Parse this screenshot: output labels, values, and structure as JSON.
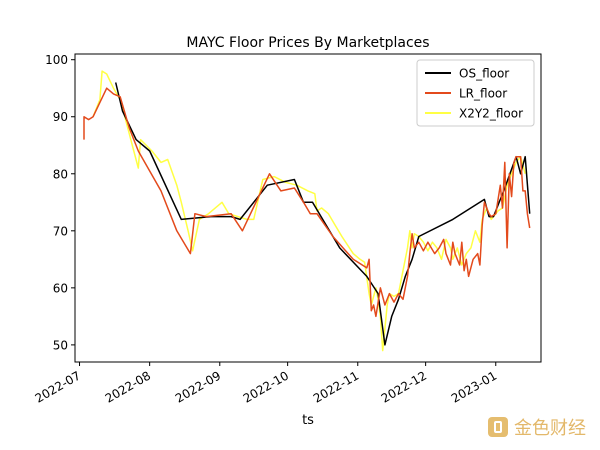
{
  "chart_data": {
    "type": "line",
    "title": "MAYC Floor Prices By Marketplaces",
    "xlabel": "ts",
    "ylabel": "",
    "ylim": [
      47,
      101
    ],
    "yticks": [
      50,
      60,
      70,
      80,
      90,
      100
    ],
    "xlim": [
      "2022-06-29",
      "2023-01-21"
    ],
    "xticks": [
      {
        "date": "2022-07-01",
        "label": "2022-07"
      },
      {
        "date": "2022-08-01",
        "label": "2022-08"
      },
      {
        "date": "2022-09-01",
        "label": "2022-09"
      },
      {
        "date": "2022-10-01",
        "label": "2022-10"
      },
      {
        "date": "2022-11-01",
        "label": "2022-11"
      },
      {
        "date": "2022-12-01",
        "label": "2022-12"
      },
      {
        "date": "2023-01-01",
        "label": "2023-01"
      }
    ],
    "legend_position": "top-right",
    "series": [
      {
        "name": "OS_floor",
        "color": "#000000",
        "points": [
          [
            "2022-07-17",
            96
          ],
          [
            "2022-07-20",
            91
          ],
          [
            "2022-07-26",
            86
          ],
          [
            "2022-08-01",
            84
          ],
          [
            "2022-08-15",
            72
          ],
          [
            "2022-08-28",
            72.5
          ],
          [
            "2022-09-06",
            72.5
          ],
          [
            "2022-09-10",
            72
          ],
          [
            "2022-09-22",
            78
          ],
          [
            "2022-10-04",
            79
          ],
          [
            "2022-10-08",
            75
          ],
          [
            "2022-10-12",
            75
          ],
          [
            "2022-10-24",
            67
          ],
          [
            "2022-11-05",
            62
          ],
          [
            "2022-11-10",
            59
          ],
          [
            "2022-11-13",
            50
          ],
          [
            "2022-11-16",
            55
          ],
          [
            "2022-11-19",
            58
          ],
          [
            "2022-11-22",
            62
          ],
          [
            "2022-11-25",
            65
          ],
          [
            "2022-11-28",
            69
          ],
          [
            "2022-12-13",
            72
          ],
          [
            "2022-12-27",
            75.5
          ],
          [
            "2022-12-29",
            72.5
          ],
          [
            "2022-12-31",
            72.5
          ],
          [
            "2023-01-05",
            77.5
          ],
          [
            "2023-01-10",
            83
          ],
          [
            "2023-01-12",
            80
          ],
          [
            "2023-01-14",
            83
          ],
          [
            "2023-01-16",
            73
          ]
        ]
      },
      {
        "name": "LR_floor",
        "color": "#e34a1c",
        "points": [
          [
            "2022-07-03",
            86
          ],
          [
            "2022-07-03",
            90
          ],
          [
            "2022-07-05",
            89.5
          ],
          [
            "2022-07-07",
            90
          ],
          [
            "2022-07-13",
            95
          ],
          [
            "2022-07-16",
            94
          ],
          [
            "2022-07-19",
            93.5
          ],
          [
            "2022-07-23",
            88
          ],
          [
            "2022-07-27",
            84
          ],
          [
            "2022-08-06",
            77
          ],
          [
            "2022-08-13",
            70
          ],
          [
            "2022-08-19",
            66
          ],
          [
            "2022-08-21",
            73
          ],
          [
            "2022-08-26",
            72.5
          ],
          [
            "2022-09-06",
            73
          ],
          [
            "2022-09-11",
            70
          ],
          [
            "2022-09-23",
            80
          ],
          [
            "2022-09-28",
            77
          ],
          [
            "2022-10-04",
            77.5
          ],
          [
            "2022-10-08",
            75
          ],
          [
            "2022-10-11",
            73
          ],
          [
            "2022-10-14",
            73
          ],
          [
            "2022-10-21",
            69
          ],
          [
            "2022-10-30",
            65
          ],
          [
            "2022-11-05",
            63.5
          ],
          [
            "2022-11-06",
            65
          ],
          [
            "2022-11-07",
            56
          ],
          [
            "2022-11-08",
            57
          ],
          [
            "2022-11-09",
            55
          ],
          [
            "2022-11-11",
            60
          ],
          [
            "2022-11-13",
            57
          ],
          [
            "2022-11-15",
            59
          ],
          [
            "2022-11-17",
            57.5
          ],
          [
            "2022-11-19",
            59
          ],
          [
            "2022-11-21",
            58
          ],
          [
            "2022-11-23",
            62
          ],
          [
            "2022-11-24",
            66
          ],
          [
            "2022-11-25",
            69.5
          ],
          [
            "2022-11-26",
            67
          ],
          [
            "2022-11-28",
            68
          ],
          [
            "2022-11-30",
            66.5
          ],
          [
            "2022-12-02",
            68
          ],
          [
            "2022-12-05",
            66
          ],
          [
            "2022-12-07",
            67
          ],
          [
            "2022-12-09",
            68.5
          ],
          [
            "2022-12-10",
            66
          ],
          [
            "2022-12-12",
            64
          ],
          [
            "2022-12-13",
            68
          ],
          [
            "2022-12-14",
            66
          ],
          [
            "2022-12-16",
            64
          ],
          [
            "2022-12-17",
            68
          ],
          [
            "2022-12-18",
            63
          ],
          [
            "2022-12-19",
            65
          ],
          [
            "2022-12-20",
            62
          ],
          [
            "2022-12-22",
            65
          ],
          [
            "2022-12-24",
            66
          ],
          [
            "2022-12-25",
            64
          ],
          [
            "2022-12-26",
            71
          ],
          [
            "2022-12-27",
            75
          ],
          [
            "2022-12-29",
            73
          ],
          [
            "2022-12-30",
            72.5
          ],
          [
            "2023-01-01",
            73
          ],
          [
            "2023-01-03",
            78
          ],
          [
            "2023-01-04",
            74
          ],
          [
            "2023-01-05",
            82
          ],
          [
            "2023-01-06",
            67
          ],
          [
            "2023-01-07",
            80
          ],
          [
            "2023-01-08",
            76
          ],
          [
            "2023-01-09",
            82
          ],
          [
            "2023-01-10",
            83
          ],
          [
            "2023-01-12",
            83
          ],
          [
            "2023-01-13",
            77
          ],
          [
            "2023-01-14",
            77
          ],
          [
            "2023-01-15",
            73
          ],
          [
            "2023-01-16",
            70.5
          ]
        ]
      },
      {
        "name": "X2Y2_floor",
        "color": "#ffff44",
        "points": [
          [
            "2022-07-07",
            90
          ],
          [
            "2022-07-10",
            93
          ],
          [
            "2022-07-11",
            98
          ],
          [
            "2022-07-13",
            97.5
          ],
          [
            "2022-07-16",
            95
          ],
          [
            "2022-07-19",
            93
          ],
          [
            "2022-07-21",
            90
          ],
          [
            "2022-07-25",
            84
          ],
          [
            "2022-07-27",
            81
          ],
          [
            "2022-07-28",
            86
          ],
          [
            "2022-08-02",
            84
          ],
          [
            "2022-08-06",
            82
          ],
          [
            "2022-08-09",
            82.5
          ],
          [
            "2022-08-13",
            78
          ],
          [
            "2022-08-15",
            75
          ],
          [
            "2022-08-18",
            70
          ],
          [
            "2022-08-20",
            66.5
          ],
          [
            "2022-08-23",
            72
          ],
          [
            "2022-08-27",
            73
          ],
          [
            "2022-09-02",
            75
          ],
          [
            "2022-09-05",
            73
          ],
          [
            "2022-09-09",
            72.5
          ],
          [
            "2022-09-13",
            72
          ],
          [
            "2022-09-16",
            72
          ],
          [
            "2022-09-20",
            79
          ],
          [
            "2022-09-25",
            79.5
          ],
          [
            "2022-09-30",
            78.5
          ],
          [
            "2022-10-05",
            78
          ],
          [
            "2022-10-10",
            77
          ],
          [
            "2022-10-13",
            76.5
          ],
          [
            "2022-10-14",
            73.5
          ],
          [
            "2022-10-16",
            74
          ],
          [
            "2022-10-19",
            73
          ],
          [
            "2022-10-22",
            71
          ],
          [
            "2022-10-25",
            69
          ],
          [
            "2022-10-30",
            66
          ],
          [
            "2022-11-02",
            65
          ],
          [
            "2022-11-04",
            64.5
          ],
          [
            "2022-11-06",
            59
          ],
          [
            "2022-11-07",
            57
          ],
          [
            "2022-11-09",
            60
          ],
          [
            "2022-11-10",
            58
          ],
          [
            "2022-11-11",
            55
          ],
          [
            "2022-11-12",
            49
          ],
          [
            "2022-11-14",
            57
          ],
          [
            "2022-11-15",
            59
          ],
          [
            "2022-11-17",
            58.5
          ],
          [
            "2022-11-19",
            59
          ],
          [
            "2022-11-21",
            63
          ],
          [
            "2022-11-23",
            67
          ],
          [
            "2022-11-24",
            70
          ],
          [
            "2022-11-25",
            67
          ],
          [
            "2022-11-26",
            69.5
          ],
          [
            "2022-11-28",
            69
          ],
          [
            "2022-11-30",
            68
          ],
          [
            "2022-12-02",
            66.5
          ],
          [
            "2022-12-04",
            68
          ],
          [
            "2022-12-06",
            67
          ],
          [
            "2022-12-08",
            65
          ],
          [
            "2022-12-10",
            68.5
          ],
          [
            "2022-12-12",
            67
          ],
          [
            "2022-12-13",
            65
          ],
          [
            "2022-12-15",
            67
          ],
          [
            "2022-12-17",
            64
          ],
          [
            "2022-12-19",
            66
          ],
          [
            "2022-12-21",
            67
          ],
          [
            "2022-12-23",
            70
          ],
          [
            "2022-12-25",
            68
          ],
          [
            "2022-12-26",
            72
          ],
          [
            "2022-12-28",
            74
          ],
          [
            "2022-12-30",
            72
          ],
          [
            "2023-01-02",
            73.5
          ],
          [
            "2023-01-04",
            74
          ],
          [
            "2023-01-06",
            78
          ],
          [
            "2023-01-08",
            80
          ],
          [
            "2023-01-10",
            82
          ],
          [
            "2023-01-12",
            83
          ],
          [
            "2023-01-14",
            80
          ]
        ]
      }
    ]
  },
  "watermark": {
    "text": "金色财经",
    "color": "#e0b15a"
  }
}
